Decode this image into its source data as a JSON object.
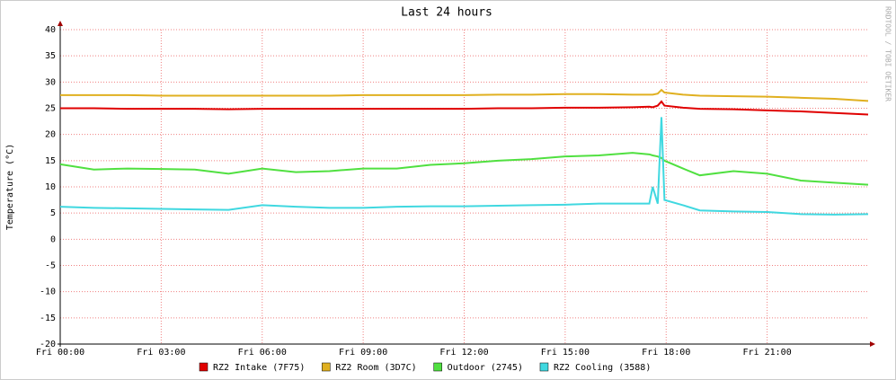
{
  "chart_data": {
    "type": "line",
    "title": "Last 24 hours",
    "y_label": "Temperature (°C)",
    "watermark": "RRDTOOL / TOBI OETIKER",
    "x": [
      0,
      1,
      2,
      3,
      4,
      5,
      6,
      7,
      8,
      9,
      10,
      11,
      12,
      13,
      14,
      15,
      16,
      17,
      17.5,
      17.6,
      17.75,
      17.86,
      17.95,
      18.5,
      19,
      20,
      21,
      22,
      23,
      24
    ],
    "xlim": [
      0,
      24
    ],
    "xticks": [
      {
        "value": 0,
        "label": "Fri 00:00"
      },
      {
        "value": 3,
        "label": "Fri 03:00"
      },
      {
        "value": 6,
        "label": "Fri 06:00"
      },
      {
        "value": 9,
        "label": "Fri 09:00"
      },
      {
        "value": 12,
        "label": "Fri 12:00"
      },
      {
        "value": 15,
        "label": "Fri 15:00"
      },
      {
        "value": 18,
        "label": "Fri 18:00"
      },
      {
        "value": 21,
        "label": "Fri 21:00"
      }
    ],
    "ylim": [
      -20,
      40
    ],
    "yticks": [
      -20,
      -15,
      -10,
      -5,
      0,
      5,
      10,
      15,
      20,
      25,
      30,
      35,
      40
    ],
    "grid": true,
    "series": [
      {
        "name": "RZ2 Intake (7F75)",
        "color": "#e00000",
        "values": [
          25,
          25,
          24.9,
          24.9,
          24.9,
          24.8,
          24.9,
          24.9,
          24.9,
          24.9,
          24.9,
          24.9,
          24.9,
          25,
          25,
          25.1,
          25.1,
          25.2,
          25.3,
          25.2,
          25.5,
          26.3,
          25.5,
          25.1,
          24.9,
          24.8,
          24.6,
          24.4,
          24.1,
          23.8
        ]
      },
      {
        "name": "RZ2 Room (3D7C)",
        "color": "#e0b020",
        "values": [
          27.5,
          27.5,
          27.5,
          27.4,
          27.4,
          27.4,
          27.4,
          27.4,
          27.4,
          27.5,
          27.5,
          27.5,
          27.5,
          27.6,
          27.6,
          27.7,
          27.7,
          27.6,
          27.6,
          27.6,
          27.8,
          28.5,
          28,
          27.6,
          27.4,
          27.3,
          27.2,
          27,
          26.8,
          26.4
        ]
      },
      {
        "name": "Outdoor (2745)",
        "color": "#50e040",
        "values": [
          14.3,
          13.3,
          13.5,
          13.4,
          13.3,
          12.5,
          13.5,
          12.8,
          13,
          13.5,
          13.5,
          14.2,
          14.5,
          15,
          15.3,
          15.8,
          16,
          16.5,
          16.2,
          16,
          15.8,
          15.5,
          15,
          13.5,
          12.2,
          13,
          12.5,
          11.2,
          10.8,
          10.4
        ]
      },
      {
        "name": "RZ2 Cooling (3588)",
        "color": "#40d8e0",
        "values": [
          6.2,
          6,
          5.9,
          5.8,
          5.7,
          5.6,
          6.5,
          6.2,
          6,
          6,
          6.2,
          6.3,
          6.3,
          6.4,
          6.5,
          6.6,
          6.8,
          6.8,
          6.8,
          10,
          6.8,
          23.3,
          7.5,
          6.5,
          5.5,
          5.3,
          5.2,
          4.8,
          4.7,
          4.8
        ]
      }
    ]
  }
}
